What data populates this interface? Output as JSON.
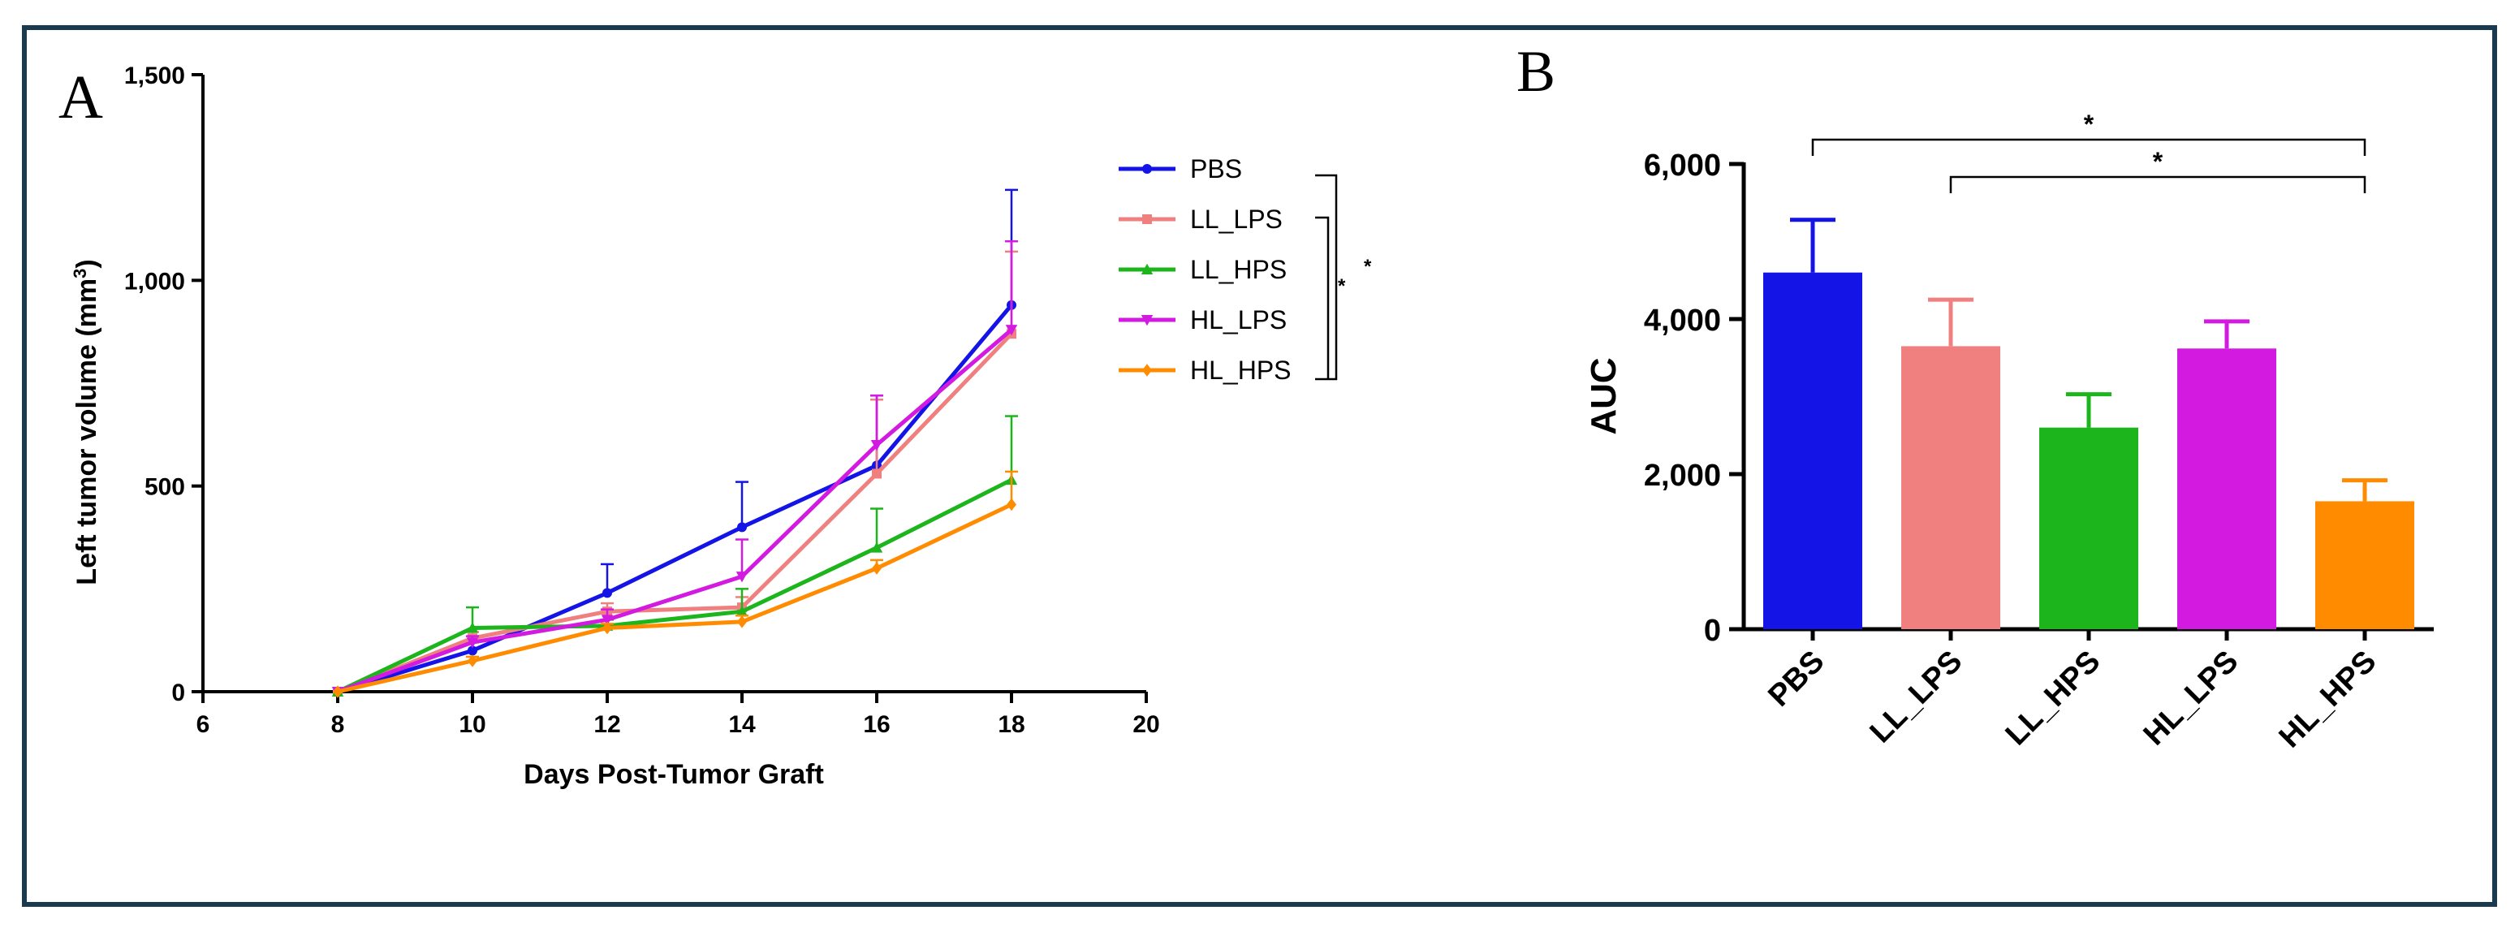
{
  "colors": {
    "frame": "#1a3a4f",
    "axis": "#000000",
    "PBS": "#1414e6",
    "LL_LPS": "#f08080",
    "LL_HPS": "#1cb51c",
    "HL_LPS": "#d21ae0",
    "HL_HPS": "#ff8c00"
  },
  "chart_data": [
    {
      "panel_label": "A",
      "type": "line",
      "xlabel": "Days Post-Tumor Graft",
      "ylabel": "Left tumor volume (mm",
      "ylabel_sup": "3",
      "ylabel_close": ")",
      "xlim": [
        6,
        20
      ],
      "ylim": [
        0,
        1500
      ],
      "xticks": [
        6,
        8,
        10,
        12,
        14,
        16,
        18,
        20
      ],
      "xtick_labels": [
        "6",
        "8",
        "10",
        "12",
        "14",
        "16",
        "18",
        "20"
      ],
      "yticks": [
        0,
        500,
        1000,
        1500
      ],
      "ytick_labels": [
        "0",
        "500",
        "1,000",
        "1,500"
      ],
      "x": [
        8,
        10,
        12,
        14,
        16,
        18
      ],
      "series": [
        {
          "name": "PBS",
          "marker": "circle",
          "values": [
            0,
            100,
            240,
            400,
            550,
            940
          ],
          "errors": [
            0,
            20,
            70,
            110,
            170,
            280
          ]
        },
        {
          "name": "LL_LPS",
          "marker": "square",
          "values": [
            0,
            130,
            195,
            205,
            530,
            870
          ],
          "errors": [
            0,
            15,
            20,
            25,
            180,
            200
          ]
        },
        {
          "name": "LL_HPS",
          "marker": "triangle-up",
          "values": [
            0,
            155,
            160,
            195,
            350,
            515
          ],
          "errors": [
            0,
            50,
            15,
            55,
            95,
            155
          ]
        },
        {
          "name": "HL_LPS",
          "marker": "triangle-down",
          "values": [
            0,
            120,
            175,
            280,
            600,
            880
          ],
          "errors": [
            0,
            15,
            25,
            90,
            120,
            215
          ]
        },
        {
          "name": "HL_HPS",
          "marker": "diamond",
          "values": [
            0,
            75,
            155,
            170,
            300,
            455
          ],
          "errors": [
            0,
            10,
            10,
            15,
            20,
            80
          ]
        }
      ],
      "legend_position": "right",
      "annotations": [
        "*",
        "*"
      ]
    },
    {
      "panel_label": "B",
      "type": "bar",
      "ylabel": "AUC",
      "ylim": [
        0,
        6000
      ],
      "yticks": [
        0,
        2000,
        4000,
        6000
      ],
      "ytick_labels": [
        "0",
        "2,000",
        "4,000",
        "6,000"
      ],
      "categories": [
        "PBS",
        "LL_LPS",
        "LL_HPS",
        "HL_LPS",
        "HL_HPS"
      ],
      "values": [
        4600,
        3650,
        2600,
        3620,
        1650
      ],
      "errors": [
        680,
        600,
        430,
        350,
        270
      ],
      "significance": [
        {
          "from": "PBS",
          "to": "HL_HPS",
          "label": "*"
        },
        {
          "from": "LL_LPS",
          "to": "HL_HPS",
          "label": "*"
        }
      ]
    }
  ]
}
